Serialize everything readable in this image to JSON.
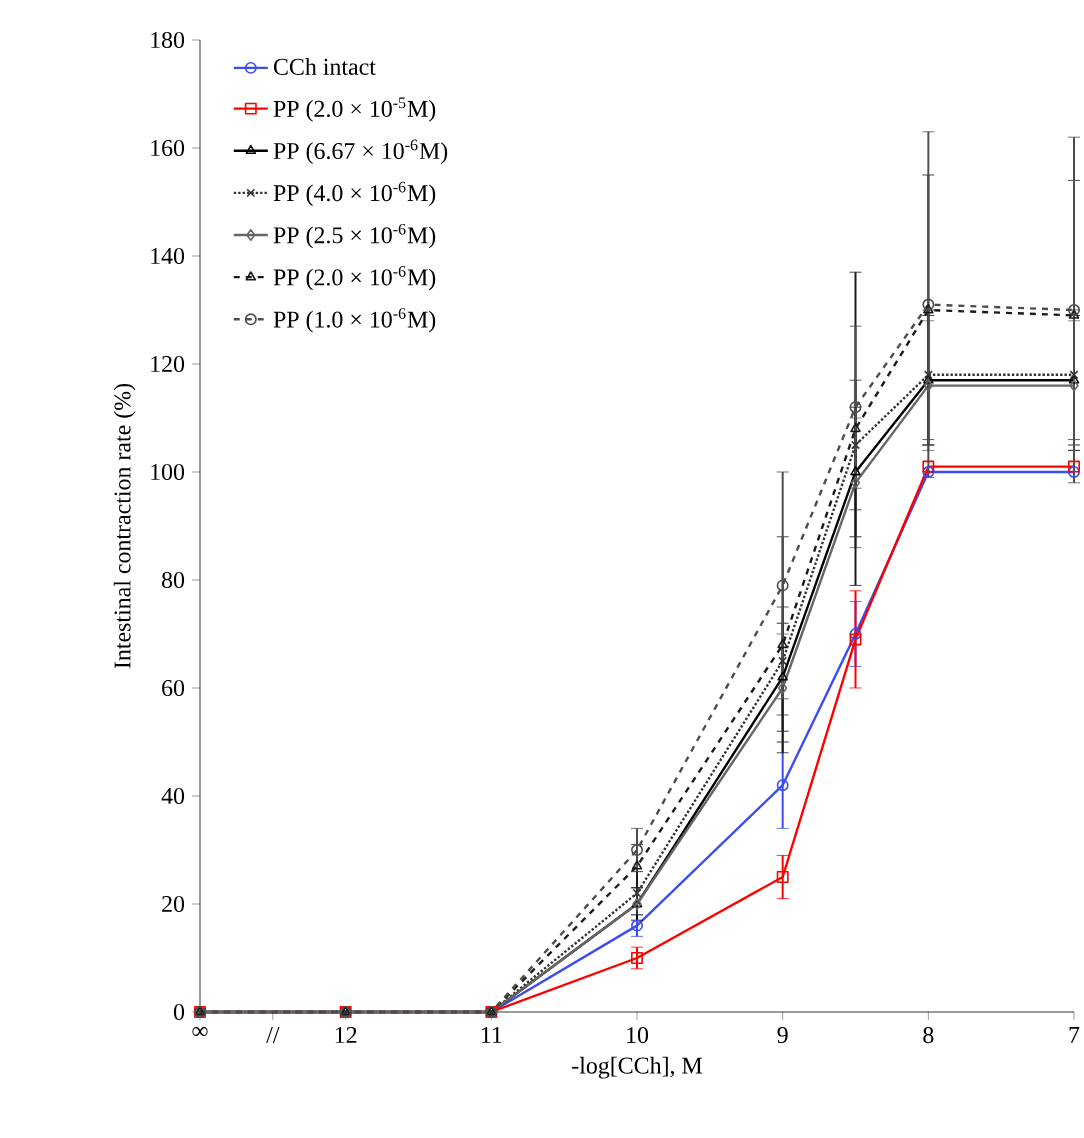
{
  "chart_data": {
    "type": "line",
    "xlabel": "-log[CCh], M",
    "ylabel": "Intestinal contraction rate (%)",
    "categories": [
      "∞",
      "//",
      "12",
      null,
      "11",
      null,
      "10",
      null,
      "9",
      null,
      "8",
      null,
      "7"
    ],
    "ylim": [
      0,
      180
    ],
    "yticks": [
      0,
      20,
      40,
      60,
      80,
      100,
      120,
      140,
      160,
      180
    ],
    "grid": false,
    "legend": "top left",
    "series": [
      {
        "name": "CCh intact",
        "color": "#3b4cf0",
        "marker": "circle",
        "line_style": "solid",
        "values": [
          0,
          null,
          0,
          null,
          0,
          null,
          16,
          null,
          42,
          70,
          100,
          null,
          100
        ],
        "errors": [
          null,
          null,
          null,
          null,
          null,
          null,
          2,
          null,
          8,
          6,
          null,
          null,
          null
        ]
      },
      {
        "name": "PP (2.0 × 10$^{-5}$M)",
        "color": "#ff0000",
        "marker": "square",
        "line_style": "solid",
        "values": [
          0,
          null,
          0,
          null,
          0,
          null,
          10,
          null,
          25,
          69,
          101,
          null,
          101
        ],
        "errors": [
          null,
          null,
          null,
          null,
          null,
          null,
          2,
          null,
          4,
          9,
          null,
          null,
          null
        ]
      },
      {
        "name": "PP (6.67 × 10$^{-6}$M)",
        "color": "#000000",
        "marker": "triangle",
        "line_style": "solid",
        "values": [
          0,
          null,
          0,
          null,
          0,
          null,
          20,
          null,
          62,
          100,
          117,
          null,
          117
        ],
        "errors": [
          null,
          null,
          null,
          null,
          null,
          null,
          3,
          null,
          10,
          12,
          12,
          null,
          12
        ]
      },
      {
        "name": "PP (4.0 × 10$^{-6}$M)",
        "color": "#333333",
        "marker": "cross",
        "line_style": "dotted",
        "values": [
          0,
          null,
          0,
          null,
          0,
          null,
          22,
          null,
          65,
          105,
          118,
          null,
          118
        ],
        "errors": [
          null,
          null,
          null,
          null,
          null,
          null,
          4,
          null,
          10,
          12,
          12,
          null,
          12
        ]
      },
      {
        "name": "PP (2.5 × 10$^{-6}$M)",
        "color": "#666666",
        "marker": "diamond",
        "line_style": "solid",
        "values": [
          0,
          null,
          0,
          null,
          0,
          null,
          20,
          null,
          60,
          98,
          116,
          null,
          116
        ],
        "errors": [
          null,
          null,
          null,
          null,
          null,
          null,
          null,
          null,
          10,
          12,
          12,
          null,
          12
        ]
      },
      {
        "name": "PP (2.0 × 10$^{-6}$M)",
        "color": "#1a1a1a",
        "marker": "triangle",
        "line_style": "dashed",
        "values": [
          0,
          null,
          0,
          null,
          0,
          null,
          27,
          null,
          68,
          108,
          130,
          null,
          129
        ],
        "errors": [
          null,
          null,
          null,
          null,
          null,
          null,
          4,
          null,
          20,
          29,
          25,
          null,
          25
        ]
      },
      {
        "name": "PP (1.0 × 10$^{-6}$M)",
        "color": "#4d4d4d",
        "marker": "circle",
        "line_style": "dashed",
        "values": [
          0,
          null,
          0,
          null,
          0,
          null,
          30,
          null,
          79,
          112,
          131,
          null,
          130
        ],
        "errors": [
          null,
          null,
          null,
          null,
          null,
          null,
          4,
          null,
          21,
          15,
          32,
          null,
          32
        ]
      }
    ]
  }
}
